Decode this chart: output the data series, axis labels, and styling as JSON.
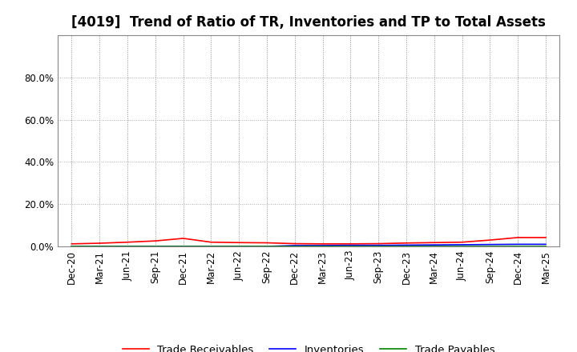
{
  "title": "[4019]  Trend of Ratio of TR, Inventories and TP to Total Assets",
  "x_labels": [
    "Dec-20",
    "Mar-21",
    "Jun-21",
    "Sep-21",
    "Dec-21",
    "Mar-22",
    "Jun-22",
    "Sep-22",
    "Dec-22",
    "Mar-23",
    "Jun-23",
    "Sep-23",
    "Dec-23",
    "Mar-24",
    "Jun-24",
    "Sep-24",
    "Dec-24",
    "Mar-25"
  ],
  "trade_receivables": [
    0.012,
    0.015,
    0.02,
    0.026,
    0.038,
    0.02,
    0.018,
    0.017,
    0.013,
    0.012,
    0.012,
    0.013,
    0.016,
    0.018,
    0.02,
    0.03,
    0.042,
    0.042
  ],
  "inventories": [
    0.0,
    0.0,
    0.0,
    0.0,
    0.0,
    0.0,
    0.0,
    0.0,
    0.004,
    0.004,
    0.005,
    0.005,
    0.006,
    0.007,
    0.008,
    0.009,
    0.01,
    0.01
  ],
  "trade_payables": [
    0.0,
    0.0,
    0.0,
    0.0,
    0.0,
    0.0,
    0.0,
    0.0,
    0.0,
    0.0,
    0.0,
    0.0,
    0.0,
    0.0,
    0.0,
    0.0,
    0.0,
    0.0
  ],
  "tr_color": "#ff0000",
  "inv_color": "#0000ff",
  "tp_color": "#008000",
  "ylim": [
    0.0,
    0.9999
  ],
  "yticks": [
    0.0,
    0.2,
    0.4,
    0.6,
    0.8
  ],
  "ytick_labels": [
    "0.0%",
    "20.0%",
    "40.0%",
    "60.0%",
    "80.0%"
  ],
  "legend_labels": [
    "Trade Receivables",
    "Inventories",
    "Trade Payables"
  ],
  "background_color": "#ffffff",
  "plot_bg_color": "#ffffff",
  "grid_color": "#aaaaaa",
  "spine_color": "#888888",
  "title_fontsize": 12,
  "axis_fontsize": 8.5,
  "legend_fontsize": 9.5
}
